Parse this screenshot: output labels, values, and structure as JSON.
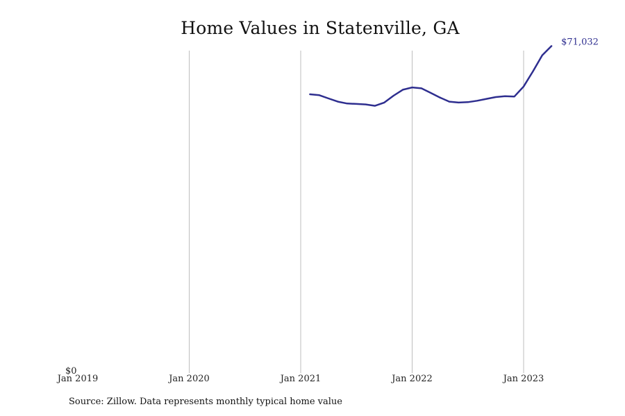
{
  "chart_data": {
    "type": "line",
    "title": "Home Values in Statenville, GA",
    "source": "Source: Zillow. Data represents monthly typical home value",
    "xlabel": "",
    "ylabel": "",
    "x_ticks": [
      "Jan 2019",
      "Jan 2020",
      "Jan 2021",
      "Jan 2022",
      "Jan 2023"
    ],
    "y_ticks": [
      "$0"
    ],
    "ylim": [
      0,
      72000
    ],
    "grid": "vertical",
    "line_color": "#2e2e8f",
    "grid_color": "#bdbdbd",
    "end_label": "$71,032",
    "series": [
      {
        "values": [
          {
            "x": "2021-02",
            "y": 60500
          },
          {
            "x": "2021-03",
            "y": 60300
          },
          {
            "x": "2021-04",
            "y": 59600
          },
          {
            "x": "2021-05",
            "y": 58900
          },
          {
            "x": "2021-06",
            "y": 58500
          },
          {
            "x": "2021-07",
            "y": 58400
          },
          {
            "x": "2021-08",
            "y": 58300
          },
          {
            "x": "2021-09",
            "y": 58000
          },
          {
            "x": "2021-10",
            "y": 58700
          },
          {
            "x": "2021-11",
            "y": 60200
          },
          {
            "x": "2021-12",
            "y": 61500
          },
          {
            "x": "2022-01",
            "y": 62000
          },
          {
            "x": "2022-02",
            "y": 61800
          },
          {
            "x": "2022-03",
            "y": 60800
          },
          {
            "x": "2022-04",
            "y": 59800
          },
          {
            "x": "2022-05",
            "y": 58900
          },
          {
            "x": "2022-06",
            "y": 58700
          },
          {
            "x": "2022-07",
            "y": 58800
          },
          {
            "x": "2022-08",
            "y": 59100
          },
          {
            "x": "2022-09",
            "y": 59500
          },
          {
            "x": "2022-10",
            "y": 59900
          },
          {
            "x": "2022-11",
            "y": 60100
          },
          {
            "x": "2022-12",
            "y": 60000
          },
          {
            "x": "2023-01",
            "y": 62200
          },
          {
            "x": "2023-02",
            "y": 65500
          },
          {
            "x": "2023-03",
            "y": 69000
          },
          {
            "x": "2023-04",
            "y": 71032
          }
        ]
      }
    ]
  }
}
